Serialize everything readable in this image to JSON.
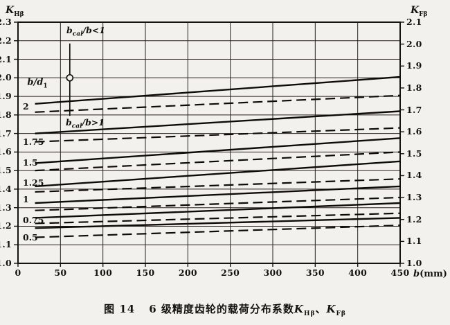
{
  "figure": {
    "fig_no": "图 14",
    "title": "6 级精度齿轮的载荷分布系数",
    "k1": {
      "base": "K",
      "sub": "Hβ"
    },
    "sep": "、",
    "k2": {
      "base": "K",
      "sub": "Fβ"
    }
  },
  "colors": {
    "ink": "#151310",
    "paper": "#f2f1ed"
  },
  "chart_data": {
    "type": "line",
    "title": "6 级精度齿轮的载荷分布系数 K_Hβ、K_Fβ",
    "x_axis": {
      "label": {
        "pre": "b",
        "post": "(mm)"
      },
      "min": 0,
      "max": 450,
      "ticks": [
        "0",
        "50",
        "100",
        "150",
        "200",
        "250",
        "300",
        "350",
        "400",
        "450"
      ]
    },
    "y_left": {
      "label": {
        "base": "K",
        "sub": "Hβ"
      },
      "min": 1.0,
      "max": 2.3,
      "ticks": [
        "2.3",
        "2.2",
        "2.1",
        "2.0",
        "1.9",
        "1.8",
        "1.7",
        "1.6",
        "1.5",
        "1.4",
        "1.3",
        "1.2",
        "1.1",
        "1.0"
      ]
    },
    "y_right": {
      "label": {
        "base": "K",
        "sub": "Fβ"
      },
      "min": 1.0,
      "max": 2.1,
      "ticks": [
        "2.1",
        "2.0",
        "1.9",
        "1.8",
        "1.7",
        "1.6",
        "1.5",
        "1.4",
        "1.3",
        "1.2",
        "1.1",
        "1.0"
      ]
    },
    "grid": true,
    "legend_note": "solid lines: bcal/b<1 ; dashed lines: bcal/b>1 ; K values read on left axis K_Hβ and right axis K_Fβ",
    "series_group_label": {
      "pre": "b/d",
      "sub": "1"
    },
    "x_span_mm": [
      20,
      450
    ],
    "series": [
      {
        "ratio": "2",
        "solid_k": [
          1.86,
          2.005
        ],
        "dashed_k": [
          1.815,
          1.905
        ],
        "label_k": 1.845
      },
      {
        "ratio": "1.75",
        "solid_k": [
          1.7,
          1.82
        ],
        "dashed_k": [
          1.655,
          1.73
        ],
        "label_k": 1.655
      },
      {
        "ratio": "1.5",
        "solid_k": [
          1.54,
          1.675
        ],
        "dashed_k": [
          1.5,
          1.6
        ],
        "label_k": 1.54
      },
      {
        "ratio": "1.25",
        "solid_k": [
          1.415,
          1.55
        ],
        "dashed_k": [
          1.385,
          1.455
        ],
        "label_k": 1.435
      },
      {
        "ratio": "1",
        "solid_k": [
          1.325,
          1.415
        ],
        "dashed_k": [
          1.285,
          1.355
        ],
        "label_k": 1.345
      },
      {
        "ratio": "0.75",
        "solid_k": [
          1.245,
          1.325
        ],
        "dashed_k": [
          1.215,
          1.27
        ],
        "label_k": 1.23
      },
      {
        "ratio": "0.5",
        "solid_k": [
          1.19,
          1.245
        ],
        "dashed_k": [
          1.14,
          1.205
        ],
        "label_k": 1.14
      }
    ],
    "annotation": {
      "top_label": {
        "pre": "b",
        "sub": "cal",
        "post": "/b<1"
      },
      "bottom_label": {
        "pre": "b",
        "sub": "cal",
        "post": "/b>1"
      },
      "line_x_mm": 61,
      "line_k_top": 2.185,
      "line_k_bottom": 1.795,
      "circle_k": 2.0
    }
  }
}
